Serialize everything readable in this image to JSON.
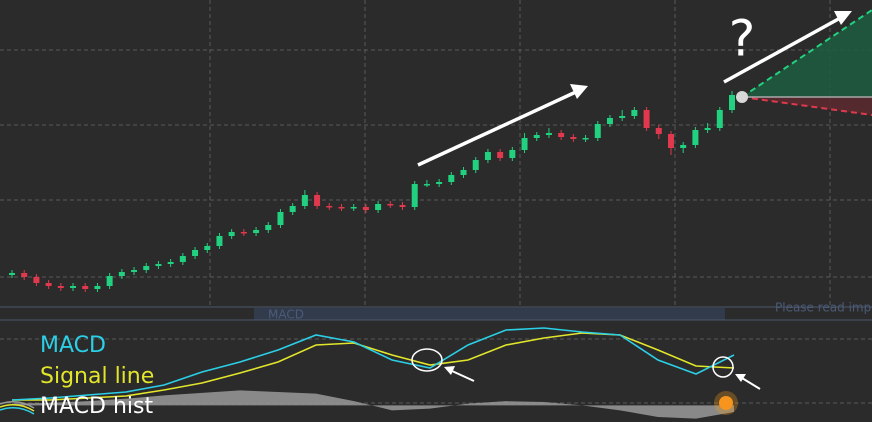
{
  "chart_data": [
    {
      "type": "candlestick",
      "open": [
        30,
        32,
        28,
        22,
        19,
        17,
        19,
        16,
        19,
        29,
        33,
        35,
        39,
        41,
        43,
        49,
        55,
        59,
        69,
        73,
        72,
        75,
        80,
        93,
        99,
        110,
        99,
        98,
        97,
        98,
        95,
        101,
        100,
        98,
        121,
        121,
        123,
        130,
        135,
        145,
        153,
        147,
        155,
        167,
        170,
        172,
        168,
        166,
        167,
        181,
        187,
        189,
        195,
        177,
        171,
        157,
        160,
        175,
        177,
        195
      ],
      "high": [
        35,
        35,
        31,
        25,
        22,
        22,
        22,
        22,
        32,
        36,
        38,
        42,
        44,
        46,
        52,
        58,
        62,
        72,
        76,
        76,
        78,
        83,
        96,
        102,
        115,
        113,
        102,
        101,
        101,
        101,
        104,
        104,
        103,
        124,
        125,
        126,
        133,
        138,
        148,
        156,
        156,
        158,
        172,
        173,
        177,
        175,
        171,
        170,
        184,
        190,
        195,
        198,
        198,
        180,
        174,
        163,
        178,
        182,
        198,
        214
      ],
      "low": [
        27,
        25,
        19,
        16,
        14,
        14,
        13,
        13,
        16,
        26,
        30,
        32,
        36,
        38,
        40,
        46,
        52,
        56,
        66,
        69,
        69,
        72,
        77,
        90,
        96,
        96,
        95,
        94,
        94,
        92,
        92,
        97,
        95,
        95,
        118,
        118,
        120,
        127,
        132,
        142,
        144,
        144,
        152,
        164,
        167,
        165,
        163,
        163,
        164,
        178,
        184,
        186,
        174,
        166,
        150,
        152,
        157,
        172,
        174,
        192
      ],
      "close": [
        32,
        28,
        22,
        19,
        17,
        19,
        16,
        19,
        29,
        33,
        35,
        39,
        41,
        43,
        49,
        55,
        59,
        69,
        73,
        72,
        75,
        80,
        93,
        99,
        110,
        99,
        98,
        97,
        98,
        95,
        101,
        100,
        98,
        121,
        121,
        123,
        130,
        135,
        145,
        153,
        147,
        155,
        167,
        170,
        172,
        168,
        166,
        167,
        181,
        187,
        189,
        195,
        177,
        171,
        157,
        160,
        175,
        177,
        195,
        210
      ],
      "up_color": "#22d17f",
      "down_color": "#e0394d",
      "ylim": [
        0,
        305
      ],
      "annotation": "?"
    },
    {
      "type": "line",
      "watermark": "MACD",
      "notice": "Please read impo",
      "series": [
        {
          "name": "MACD",
          "color": "#2bcfe6",
          "values": [
            0.064,
            0.088,
            0.124,
            0.16,
            0.244,
            0.4,
            0.52,
            0.664,
            0.844,
            0.76,
            0.544,
            0.448,
            0.724,
            0.904,
            0.928,
            0.88,
            0.844,
            0.544,
            0.376,
            0.604
          ]
        },
        {
          "name": "Signal line",
          "color": "#e2e62a",
          "values": [
            0.064,
            0.064,
            0.088,
            0.112,
            0.184,
            0.268,
            0.388,
            0.52,
            0.724,
            0.748,
            0.604,
            0.484,
            0.544,
            0.724,
            0.808,
            0.868,
            0.844,
            0.664,
            0.472,
            0.448
          ]
        },
        {
          "name": "MACD hist",
          "color": "#9a9a9a",
          "values": [
            0.02,
            0.03,
            0.05,
            0.08,
            0.12,
            0.15,
            0.18,
            0.16,
            0.14,
            0.05,
            -0.06,
            -0.04,
            0.02,
            0.05,
            0.04,
            0.0,
            -0.06,
            -0.14,
            -0.16,
            -0.08
          ]
        }
      ],
      "ylim": [
        -0.2,
        1.0
      ]
    }
  ]
}
